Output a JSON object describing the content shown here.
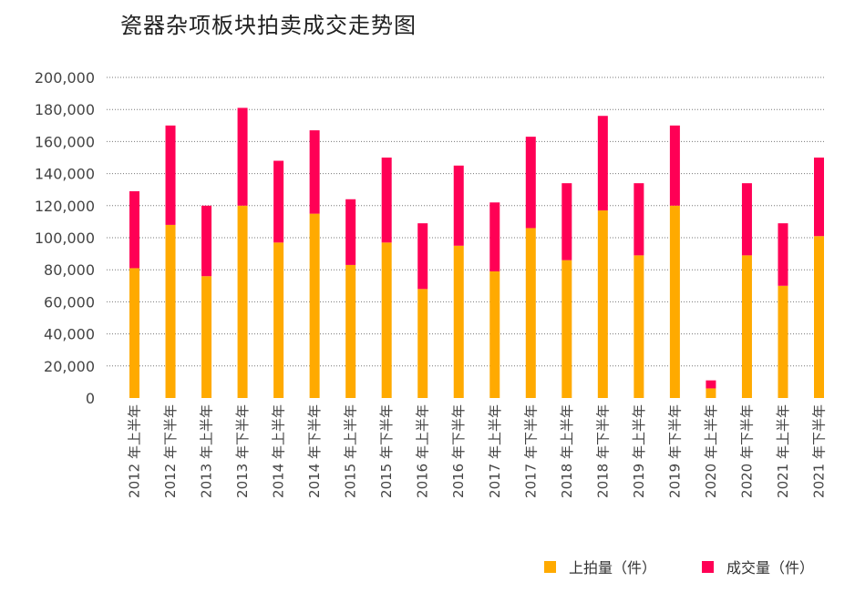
{
  "chart_data": {
    "type": "bar",
    "stacked": true,
    "title": "瓷器杂项板块拍卖成交走势图",
    "xlabel": "",
    "ylabel": "",
    "ylim": [
      0,
      200000
    ],
    "y_ticks": [
      "0",
      "20,000",
      "40,000",
      "60,000",
      "80,000",
      "100,000",
      "120,000",
      "140,000",
      "160,000",
      "180,000",
      "200,000"
    ],
    "grid": true,
    "legend_position": "bottom-right",
    "categories": [
      "2012 年上半年",
      "2012 年下半年",
      "2013 年上半年",
      "2013 年下半年",
      "2014 年上半年",
      "2014 年下半年",
      "2015 年上半年",
      "2015 年下半年",
      "2016 年上半年",
      "2016 年下半年",
      "2017 年上半年",
      "2017 年下半年",
      "2018 年上半年",
      "2018 年下半年",
      "2019 年上半年",
      "2019 年下半年",
      "2020 年上半年",
      "2020 年下半年",
      "2021 年上半年",
      "2021 年下半年"
    ],
    "series": [
      {
        "name": "上拍量（件）",
        "color": "#FFAA00",
        "values": [
          81000,
          108000,
          76000,
          120000,
          97000,
          115000,
          83000,
          97000,
          68000,
          95000,
          79000,
          106000,
          86000,
          117000,
          89000,
          120000,
          6000,
          89000,
          70000,
          101000
        ]
      },
      {
        "name": "成交量（件）",
        "color": "#FF0055",
        "values": [
          48000,
          62000,
          44000,
          61000,
          51000,
          52000,
          41000,
          53000,
          41000,
          50000,
          43000,
          57000,
          48000,
          59000,
          45000,
          50000,
          5000,
          45000,
          39000,
          49000
        ]
      }
    ]
  }
}
